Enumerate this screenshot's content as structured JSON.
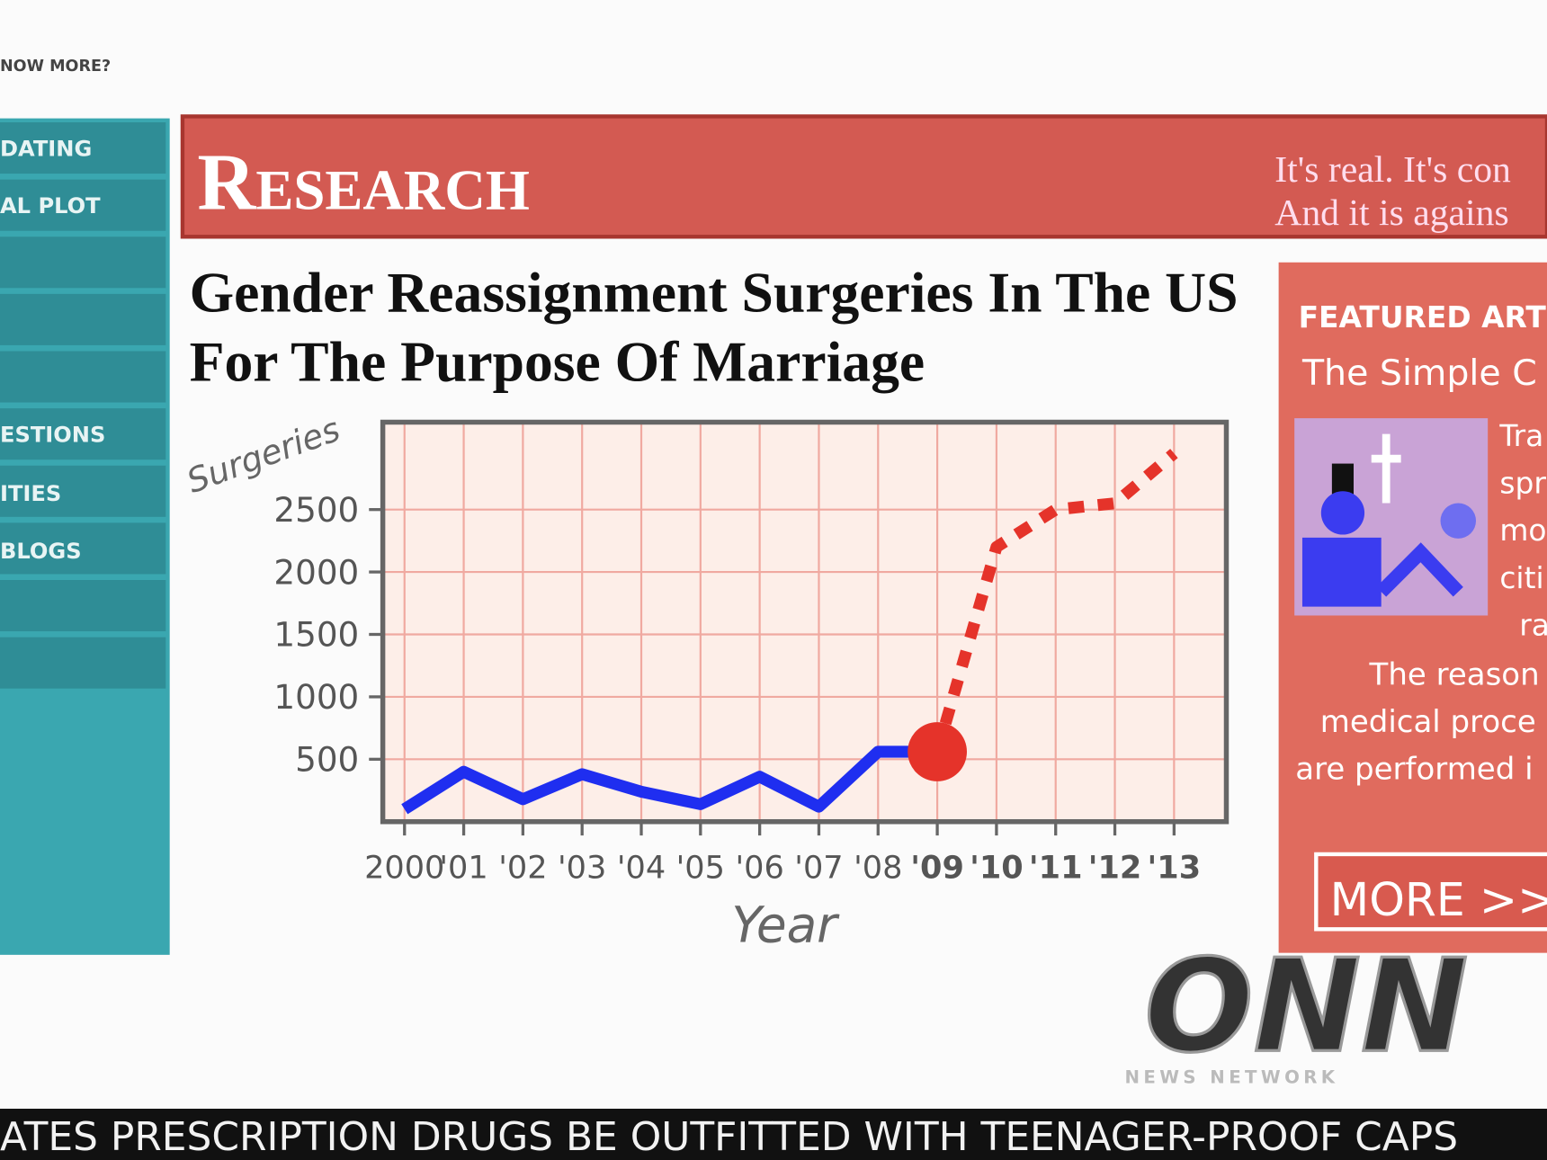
{
  "top_bar": {
    "link": "NOW MORE?"
  },
  "nav": [
    "DATING",
    "AL PLOT",
    "ESTIONS",
    "ITIES",
    "BLOGS"
  ],
  "banner": {
    "title": "Research",
    "tagline": [
      "It's real. It's con",
      "And it is agains"
    ]
  },
  "chart_data": {
    "type": "line",
    "title": "Gender Reassignment Surgeries In The US For The Purpose Of Marriage",
    "y_label": "Surgeries",
    "x_label": "Year",
    "categories": [
      "2000",
      "'01",
      "'02",
      "'03",
      "'04",
      "'05",
      "'06",
      "'07",
      "'08",
      "'09",
      "'10",
      "'11",
      "'12",
      "'13"
    ],
    "series": [
      {
        "color": "#1f2ef0",
        "style": "solid",
        "values": [
          100,
          400,
          180,
          380,
          240,
          140,
          360,
          120,
          560,
          560,
          null,
          null,
          null,
          null
        ]
      },
      {
        "color": "#e5332a",
        "style": "dotted",
        "values": [
          null,
          null,
          null,
          null,
          null,
          null,
          null,
          null,
          null,
          560,
          2200,
          2500,
          2550,
          2950
        ]
      }
    ],
    "ylim": [
      0,
      3200
    ],
    "yticks": [
      500,
      1000,
      1500,
      2000,
      2500
    ],
    "grid": true
  },
  "sidebar": {
    "heading": "FEATURED ART",
    "article": "The Simple C",
    "snippet": [
      "Tra",
      "spr",
      "mo",
      "citi",
      "ra"
    ],
    "body": [
      "The reason",
      "medical proce",
      "are performed i"
    ],
    "button": "MORE >>"
  },
  "logo": {
    "mark": "ONN",
    "caption": "NEWS NETWORK"
  },
  "ticker": "ATES PRESCRIPTION DRUGS BE OUTFITTED WITH TEENAGER-PROOF CAPS"
}
